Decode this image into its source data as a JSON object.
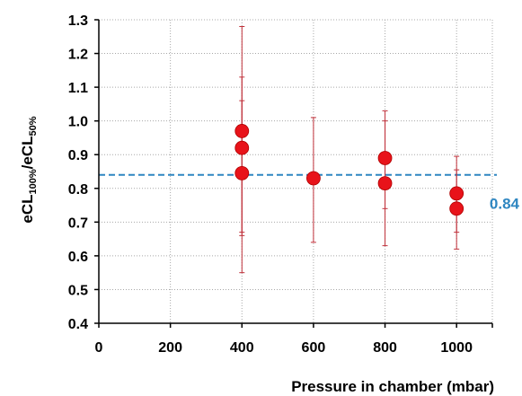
{
  "chart_data": {
    "type": "scatter",
    "xlabel": "Pressure in chamber (mbar)",
    "ylabel_main": "eCL",
    "ylabel_sub1": "100%",
    "ylabel_sep": "/eCL",
    "ylabel_sub2": "50%",
    "xlim": [
      0,
      1100
    ],
    "ylim": [
      0.4,
      1.3
    ],
    "xticks": [
      0,
      200,
      400,
      600,
      800,
      1000
    ],
    "xtick_labels": [
      "0",
      "200",
      "400",
      "600",
      "800",
      "1000"
    ],
    "yticks": [
      0.4,
      0.5,
      0.6,
      0.7,
      0.8,
      0.9,
      1.0,
      1.1,
      1.2,
      1.3
    ],
    "ytick_labels": [
      "0.4",
      "0.5",
      "0.6",
      "0.7",
      "0.8",
      "0.9",
      "1.0",
      "1.1",
      "1.2",
      "1.3"
    ],
    "grid": true,
    "points": [
      {
        "x": 400,
        "y": 0.97,
        "ylow": 0.66,
        "yhigh": 1.28
      },
      {
        "x": 400,
        "y": 0.92,
        "ylow": 0.55,
        "yhigh": 1.13
      },
      {
        "x": 400,
        "y": 0.845,
        "ylow": 0.67,
        "yhigh": 1.06
      },
      {
        "x": 600,
        "y": 0.83,
        "ylow": 0.64,
        "yhigh": 1.01
      },
      {
        "x": 800,
        "y": 0.89,
        "ylow": 0.74,
        "yhigh": 1.03
      },
      {
        "x": 800,
        "y": 0.815,
        "ylow": 0.63,
        "yhigh": 1.0
      },
      {
        "x": 1000,
        "y": 0.785,
        "ylow": 0.67,
        "yhigh": 0.895
      },
      {
        "x": 1000,
        "y": 0.74,
        "ylow": 0.62,
        "yhigh": 0.855
      }
    ],
    "reference_line": {
      "y": 0.84,
      "label": "0.84"
    },
    "colors": {
      "marker": "#e8131a",
      "errorbar": "#c0303a",
      "reference": "#2e86c1",
      "grid": "#a8a8a8"
    }
  }
}
